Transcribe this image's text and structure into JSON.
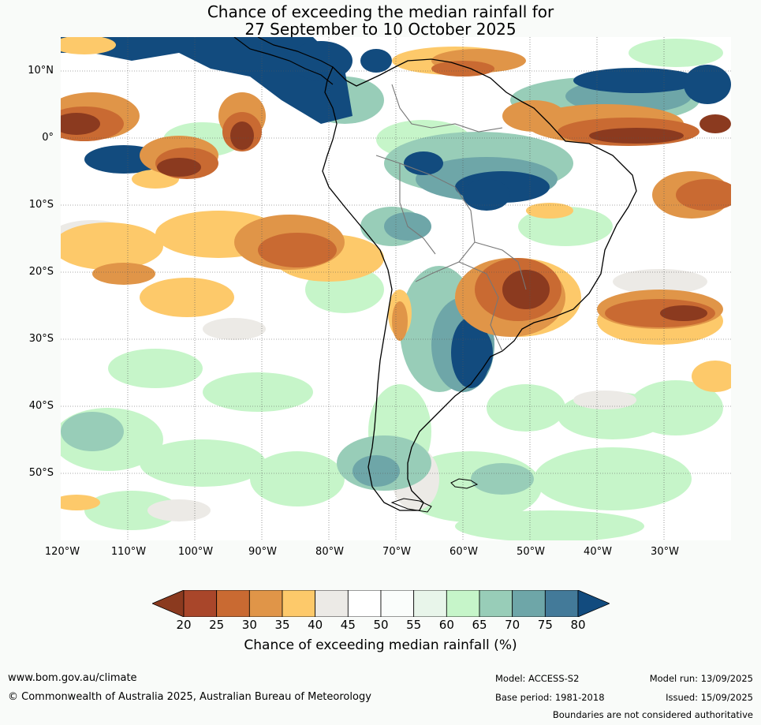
{
  "title": {
    "line1": "Chance of exceeding the median rainfall for",
    "line2": "27 September to 10 October 2025"
  },
  "map": {
    "lat_labels": [
      "10°N",
      "0°",
      "10°S",
      "20°S",
      "30°S",
      "40°S",
      "50°S"
    ],
    "lon_labels": [
      "120°W",
      "110°W",
      "100°W",
      "90°W",
      "80°W",
      "70°W",
      "60°W",
      "50°W",
      "40°W",
      "30°W"
    ]
  },
  "colorbar": {
    "ticks": [
      "20",
      "25",
      "30",
      "35",
      "40",
      "45",
      "50",
      "55",
      "60",
      "65",
      "70",
      "75",
      "80"
    ],
    "colors": [
      "#8b3a1f",
      "#a9462a",
      "#c96a32",
      "#e09548",
      "#fdc96a",
      "#eceae6",
      "#ffffff",
      "#fafdfb",
      "#e8f5ea",
      "#c6f5c9",
      "#98cdb8",
      "#6ea6a8",
      "#437a99",
      "#124b7e"
    ],
    "label": "Chance of exceeding median rainfall (%)"
  },
  "footer": {
    "website": "www.bom.gov.au/climate",
    "copyright": "© Commonwealth of Australia 2025, Australian Bureau of Meteorology",
    "model": "Model: ACCESS-S2",
    "base_period": "Base period: 1981-2018",
    "model_run": "Model run: 13/09/2025",
    "issued": "Issued: 15/09/2025",
    "disclaimer": "Boundaries are not considered authoritative"
  }
}
